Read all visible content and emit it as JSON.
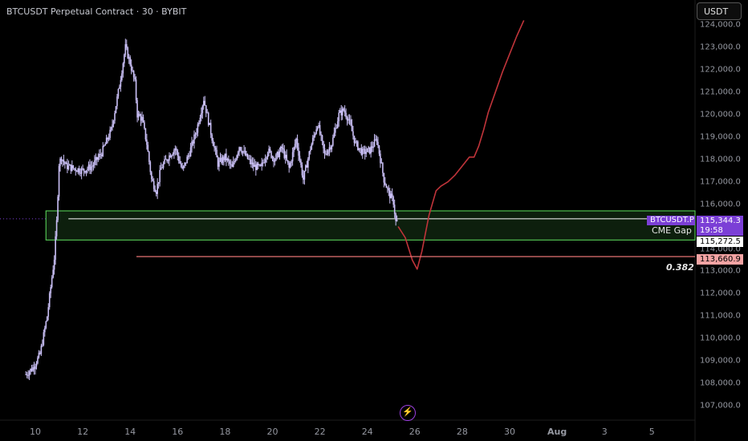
{
  "header": {
    "title": "BTCUSDT Perpetual Contract · 30 · BYBIT",
    "currency": "USDT"
  },
  "colors": {
    "background": "#000000",
    "candles": "#c9bff5",
    "projection": "#c0343a",
    "zone_border": "#5ee05e",
    "fib_line": "#e57373",
    "symbol_tag": "#7b3fd6"
  },
  "chart_data": {
    "type": "line",
    "title": "BTCUSDT Perpetual Contract · 30 · BYBIT",
    "y_axis_ticks": [
      "124,000.0",
      "123,000.0",
      "122,000.0",
      "121,000.0",
      "120,000.0",
      "119,000.0",
      "118,000.0",
      "117,000.0",
      "116,000.0",
      "115,000.0",
      "114,000.0",
      "113,000.0",
      "112,000.0",
      "111,000.0",
      "110,000.0",
      "109,000.0",
      "108,000.0",
      "107,000.0"
    ],
    "x_axis_ticks": [
      "10",
      "12",
      "14",
      "16",
      "18",
      "20",
      "22",
      "24",
      "26",
      "28",
      "30",
      "Aug",
      "3",
      "5"
    ],
    "ylim": [
      106700,
      124300
    ],
    "xlim_days": [
      9.5,
      36.0
    ],
    "price_series": {
      "name": "BTCUSDT.P",
      "x": [
        9.6,
        9.9,
        10.2,
        10.5,
        10.8,
        10.9,
        11.0,
        11.1,
        11.3,
        11.6,
        12.0,
        12.4,
        12.8,
        13.2,
        13.5,
        13.8,
        14.0,
        14.2,
        14.3,
        14.5,
        14.7,
        14.9,
        15.1,
        15.3,
        15.6,
        15.9,
        16.2,
        16.5,
        16.8,
        17.1,
        17.4,
        17.7,
        18.0,
        18.3,
        18.6,
        18.9,
        19.2,
        19.5,
        19.8,
        20.1,
        20.4,
        20.7,
        21.0,
        21.3,
        21.6,
        21.9,
        22.2,
        22.5,
        22.8,
        23.0,
        23.2,
        23.5,
        23.8,
        24.1,
        24.4,
        24.7,
        24.9,
        25.1,
        25.2,
        25.3
      ],
      "y": [
        108400,
        108700,
        109300,
        111000,
        113600,
        115200,
        117800,
        118100,
        117700,
        117600,
        117500,
        117700,
        118300,
        119300,
        121000,
        123000,
        122300,
        121400,
        120000,
        119800,
        118700,
        117100,
        116600,
        117600,
        118100,
        118500,
        117500,
        118300,
        119300,
        120700,
        119200,
        117800,
        118100,
        117600,
        118600,
        118100,
        117700,
        117600,
        118400,
        118000,
        118500,
        117600,
        118900,
        117100,
        118500,
        119600,
        118200,
        118700,
        120000,
        120200,
        119800,
        118700,
        118300,
        118400,
        118900,
        117100,
        116500,
        116100,
        115200,
        115300
      ]
    },
    "projection": {
      "x": [
        25.3,
        25.6,
        25.9,
        26.1,
        26.3,
        26.6,
        26.9,
        27.1,
        27.4,
        27.7,
        28.0,
        28.3,
        28.5,
        28.7,
        28.9,
        29.1,
        29.4,
        29.7,
        30.0,
        30.3,
        30.6
      ],
      "y": [
        115000,
        114500,
        113500,
        113100,
        113900,
        115500,
        116600,
        116800,
        117000,
        117300,
        117700,
        118100,
        118100,
        118600,
        119300,
        120100,
        121000,
        121900,
        122700,
        123500,
        124200
      ]
    },
    "zone": {
      "label": "CME Gap",
      "top": 115700,
      "bottom": 114400,
      "inner_line": 115344.3,
      "x_start": 9.5
    },
    "levels": [
      {
        "label": "0.382",
        "value": 113660.9
      }
    ],
    "price_tags": [
      {
        "symbol": "BTCUSDT.P",
        "value": "115,344.3",
        "countdown": "19:58"
      },
      {
        "value": "115,272.5"
      },
      {
        "value": "113,660.9"
      }
    ]
  }
}
